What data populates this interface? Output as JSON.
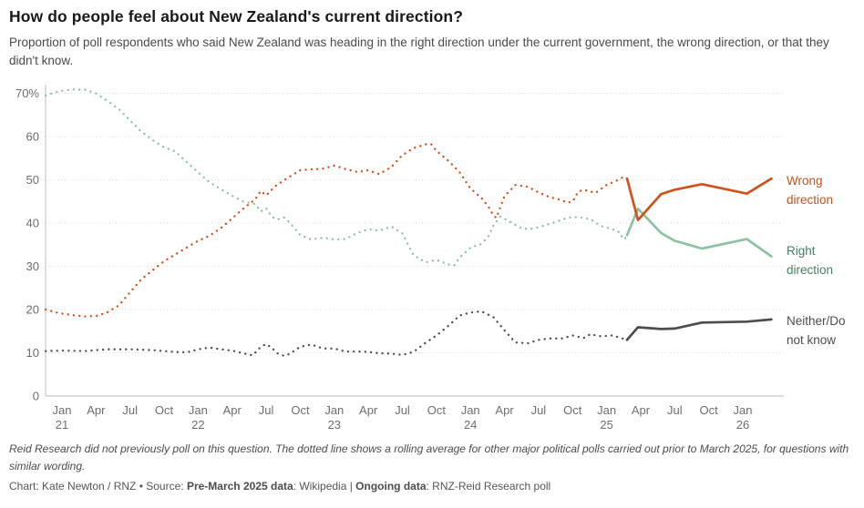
{
  "chart_data": {
    "type": "line",
    "title": "How do people feel about New Zealand's current direction?",
    "subtitle": "Proportion of poll respondents who said New Zealand was heading in the right direction under the current government, the wrong direction, or that they didn't know.",
    "y_axis": {
      "ticks": [
        {
          "v": 0,
          "label": "0"
        },
        {
          "v": 10,
          "label": "10"
        },
        {
          "v": 20,
          "label": "20"
        },
        {
          "v": 30,
          "label": "30"
        },
        {
          "v": 40,
          "label": "40"
        },
        {
          "v": 50,
          "label": "50"
        },
        {
          "v": 60,
          "label": "60"
        },
        {
          "v": 70,
          "label": "70%"
        }
      ],
      "range": [
        0,
        71
      ],
      "grid": true
    },
    "x_axis": {
      "range_years": [
        2020.88,
        2026.25
      ],
      "ticks": [
        {
          "t": 2021.0,
          "month": "Jan",
          "year": "21"
        },
        {
          "t": 2021.25,
          "month": "Apr"
        },
        {
          "t": 2021.5,
          "month": "Jul"
        },
        {
          "t": 2021.75,
          "month": "Oct"
        },
        {
          "t": 2022.0,
          "month": "Jan",
          "year": "22"
        },
        {
          "t": 2022.25,
          "month": "Apr"
        },
        {
          "t": 2022.5,
          "month": "Jul"
        },
        {
          "t": 2022.75,
          "month": "Oct"
        },
        {
          "t": 2023.0,
          "month": "Jan",
          "year": "23"
        },
        {
          "t": 2023.25,
          "month": "Apr"
        },
        {
          "t": 2023.5,
          "month": "Jul"
        },
        {
          "t": 2023.75,
          "month": "Oct"
        },
        {
          "t": 2024.0,
          "month": "Jan",
          "year": "24"
        },
        {
          "t": 2024.25,
          "month": "Apr"
        },
        {
          "t": 2024.5,
          "month": "Jul"
        },
        {
          "t": 2024.75,
          "month": "Oct"
        },
        {
          "t": 2025.0,
          "month": "Jan",
          "year": "25"
        },
        {
          "t": 2025.25,
          "month": "Apr"
        },
        {
          "t": 2025.5,
          "month": "Jul"
        },
        {
          "t": 2025.75,
          "month": "Oct"
        },
        {
          "t": 2026.0,
          "month": "Jan",
          "year": "26"
        }
      ]
    },
    "legend": [
      {
        "id": "wrong",
        "label": "Wrong direction",
        "color": "#c6511c"
      },
      {
        "id": "right",
        "label": "Right direction",
        "color": "#458063"
      },
      {
        "id": "neither",
        "label": "Neither/Do not know",
        "color": "#4d4d4d"
      }
    ],
    "series": [
      {
        "name": "Right direction — pre-March 2025 rolling average",
        "color": "#8cc3a3",
        "style": "dotted",
        "points": [
          [
            2020.88,
            69.5
          ],
          [
            2020.96,
            70.3
          ],
          [
            2021.0,
            70.6
          ],
          [
            2021.08,
            70.9
          ],
          [
            2021.17,
            70.8
          ],
          [
            2021.25,
            70.0
          ],
          [
            2021.33,
            68.3
          ],
          [
            2021.42,
            66.3
          ],
          [
            2021.5,
            63.7
          ],
          [
            2021.58,
            61.2
          ],
          [
            2021.67,
            59.1
          ],
          [
            2021.75,
            57.5
          ],
          [
            2021.83,
            56.6
          ],
          [
            2021.92,
            54.0
          ],
          [
            2022.0,
            51.7
          ],
          [
            2022.08,
            49.5
          ],
          [
            2022.17,
            47.8
          ],
          [
            2022.25,
            46.3
          ],
          [
            2022.33,
            45.0
          ],
          [
            2022.42,
            44.4
          ],
          [
            2022.46,
            42.7
          ],
          [
            2022.5,
            43.4
          ],
          [
            2022.54,
            41.5
          ],
          [
            2022.58,
            40.8
          ],
          [
            2022.63,
            41.3
          ],
          [
            2022.67,
            40.2
          ],
          [
            2022.75,
            37.2
          ],
          [
            2022.83,
            36.2
          ],
          [
            2022.92,
            36.6
          ],
          [
            2023.0,
            36.2
          ],
          [
            2023.08,
            36.3
          ],
          [
            2023.17,
            37.7
          ],
          [
            2023.25,
            38.6
          ],
          [
            2023.33,
            38.2
          ],
          [
            2023.42,
            39.2
          ],
          [
            2023.5,
            37.6
          ],
          [
            2023.58,
            32.6
          ],
          [
            2023.67,
            30.9
          ],
          [
            2023.75,
            31.5
          ],
          [
            2023.83,
            30.5
          ],
          [
            2023.88,
            30.2
          ],
          [
            2023.92,
            32.0
          ],
          [
            2024.0,
            34.3
          ],
          [
            2024.08,
            35.2
          ],
          [
            2024.13,
            36.8
          ],
          [
            2024.17,
            39.5
          ],
          [
            2024.22,
            41.5
          ],
          [
            2024.29,
            40.3
          ],
          [
            2024.38,
            38.7
          ],
          [
            2024.46,
            38.7
          ],
          [
            2024.54,
            39.4
          ],
          [
            2024.63,
            40.3
          ],
          [
            2024.71,
            41.2
          ],
          [
            2024.79,
            41.4
          ],
          [
            2024.88,
            40.9
          ],
          [
            2024.96,
            39.3
          ],
          [
            2025.04,
            38.6
          ],
          [
            2025.1,
            37.8
          ],
          [
            2025.12,
            36.3
          ],
          [
            2025.15,
            36.7
          ]
        ]
      },
      {
        "name": "Wrong direction — pre-March 2025 rolling average",
        "color": "#d2521c",
        "style": "dotted",
        "points": [
          [
            2020.88,
            20.0
          ],
          [
            2020.96,
            19.3
          ],
          [
            2021.0,
            19.1
          ],
          [
            2021.08,
            18.7
          ],
          [
            2021.17,
            18.4
          ],
          [
            2021.25,
            18.5
          ],
          [
            2021.33,
            19.3
          ],
          [
            2021.42,
            21.0
          ],
          [
            2021.5,
            24.0
          ],
          [
            2021.58,
            26.9
          ],
          [
            2021.67,
            29.2
          ],
          [
            2021.75,
            31.2
          ],
          [
            2021.83,
            32.7
          ],
          [
            2021.92,
            34.4
          ],
          [
            2022.0,
            35.9
          ],
          [
            2022.08,
            37.0
          ],
          [
            2022.17,
            38.9
          ],
          [
            2022.25,
            41.1
          ],
          [
            2022.33,
            43.3
          ],
          [
            2022.42,
            45.5
          ],
          [
            2022.46,
            47.4
          ],
          [
            2022.5,
            46.4
          ],
          [
            2022.54,
            47.7
          ],
          [
            2022.58,
            48.9
          ],
          [
            2022.67,
            50.7
          ],
          [
            2022.75,
            52.2
          ],
          [
            2022.83,
            52.4
          ],
          [
            2022.92,
            52.6
          ],
          [
            2023.0,
            53.3
          ],
          [
            2023.08,
            52.5
          ],
          [
            2023.17,
            51.8
          ],
          [
            2023.25,
            52.2
          ],
          [
            2023.33,
            51.3
          ],
          [
            2023.42,
            53.0
          ],
          [
            2023.5,
            55.7
          ],
          [
            2023.58,
            57.3
          ],
          [
            2023.67,
            58.2
          ],
          [
            2023.71,
            58.3
          ],
          [
            2023.75,
            56.7
          ],
          [
            2023.83,
            54.6
          ],
          [
            2023.92,
            51.8
          ],
          [
            2024.0,
            48.0
          ],
          [
            2024.08,
            45.8
          ],
          [
            2024.13,
            43.9
          ],
          [
            2024.17,
            41.7
          ],
          [
            2024.19,
            41.2
          ],
          [
            2024.25,
            46.2
          ],
          [
            2024.33,
            48.8
          ],
          [
            2024.42,
            48.4
          ],
          [
            2024.5,
            47.1
          ],
          [
            2024.58,
            46.0
          ],
          [
            2024.67,
            45.3
          ],
          [
            2024.71,
            44.7
          ],
          [
            2024.75,
            45.0
          ],
          [
            2024.79,
            47.2
          ],
          [
            2024.83,
            47.7
          ],
          [
            2024.92,
            47.0
          ],
          [
            2025.0,
            48.8
          ],
          [
            2025.08,
            49.9
          ],
          [
            2025.12,
            50.6
          ],
          [
            2025.15,
            50.3
          ]
        ]
      },
      {
        "name": "Neither/Do not know — pre-March 2025 rolling average",
        "color": "#4d4d4d",
        "style": "dotted",
        "points": [
          [
            2020.88,
            10.4
          ],
          [
            2021.0,
            10.5
          ],
          [
            2021.17,
            10.4
          ],
          [
            2021.33,
            10.8
          ],
          [
            2021.5,
            10.8
          ],
          [
            2021.67,
            10.6
          ],
          [
            2021.75,
            10.4
          ],
          [
            2021.83,
            10.2
          ],
          [
            2021.92,
            10.1
          ],
          [
            2022.0,
            10.8
          ],
          [
            2022.08,
            11.2
          ],
          [
            2022.17,
            10.8
          ],
          [
            2022.25,
            10.5
          ],
          [
            2022.33,
            9.9
          ],
          [
            2022.4,
            9.4
          ],
          [
            2022.46,
            11.4
          ],
          [
            2022.5,
            12.0
          ],
          [
            2022.54,
            11.2
          ],
          [
            2022.58,
            9.9
          ],
          [
            2022.63,
            9.3
          ],
          [
            2022.67,
            9.7
          ],
          [
            2022.75,
            11.4
          ],
          [
            2022.83,
            11.9
          ],
          [
            2022.92,
            11.0
          ],
          [
            2023.0,
            11.0
          ],
          [
            2023.08,
            10.3
          ],
          [
            2023.17,
            10.3
          ],
          [
            2023.25,
            10.2
          ],
          [
            2023.33,
            9.9
          ],
          [
            2023.42,
            9.8
          ],
          [
            2023.5,
            9.5
          ],
          [
            2023.58,
            10.2
          ],
          [
            2023.67,
            12.3
          ],
          [
            2023.75,
            14.0
          ],
          [
            2023.83,
            16.0
          ],
          [
            2023.92,
            18.6
          ],
          [
            2024.0,
            19.3
          ],
          [
            2024.08,
            19.6
          ],
          [
            2024.17,
            18.2
          ],
          [
            2024.25,
            15.2
          ],
          [
            2024.33,
            12.4
          ],
          [
            2024.42,
            12.2
          ],
          [
            2024.5,
            13.0
          ],
          [
            2024.58,
            13.3
          ],
          [
            2024.67,
            13.3
          ],
          [
            2024.75,
            14.0
          ],
          [
            2024.83,
            13.4
          ],
          [
            2024.88,
            14.3
          ],
          [
            2024.96,
            13.8
          ],
          [
            2025.04,
            14.0
          ],
          [
            2025.1,
            13.5
          ],
          [
            2025.15,
            13.0
          ]
        ]
      },
      {
        "name": "Right direction — RNZ-Reid Research poll",
        "color": "#8cc3a3",
        "style": "solid",
        "points": [
          [
            2025.15,
            37.2
          ],
          [
            2025.23,
            43.3
          ],
          [
            2025.4,
            37.7
          ],
          [
            2025.5,
            35.9
          ],
          [
            2025.7,
            34.1
          ],
          [
            2026.03,
            36.3
          ],
          [
            2026.21,
            32.3
          ]
        ]
      },
      {
        "name": "Wrong direction — RNZ-Reid Research poll",
        "color": "#d2521c",
        "style": "solid",
        "points": [
          [
            2025.15,
            50.3
          ],
          [
            2025.23,
            40.7
          ],
          [
            2025.4,
            46.7
          ],
          [
            2025.5,
            47.7
          ],
          [
            2025.7,
            49.0
          ],
          [
            2026.03,
            46.8
          ],
          [
            2026.21,
            50.3
          ]
        ]
      },
      {
        "name": "Neither/Do not know — RNZ-Reid Research poll",
        "color": "#4d4d4d",
        "style": "solid",
        "points": [
          [
            2025.15,
            13.0
          ],
          [
            2025.23,
            15.9
          ],
          [
            2025.4,
            15.5
          ],
          [
            2025.5,
            15.6
          ],
          [
            2025.7,
            17.0
          ],
          [
            2026.03,
            17.2
          ],
          [
            2026.21,
            17.7
          ]
        ]
      }
    ],
    "layout": {
      "x0": 68,
      "pxPerYear": 149.4,
      "yZero": 435,
      "pxPerUnit": 4.75,
      "plotLeft": 50,
      "plotRight": 860,
      "plotTop": 93,
      "gridColor": "#d9d9d9",
      "axisColor": "#c8c8c8",
      "tickLabelColor": "#6e6e6e",
      "dottedWidth": 2.3,
      "solidWidth": 2.7
    }
  },
  "footer": {
    "note": "Reid Research did not previously poll on this question. The dotted line shows a rolling average for other major political polls carried out prior to March 2025, for questions with similar wording.",
    "credit_prefix": "Chart: Kate Newton / RNZ • Source: ",
    "credit_bold1": "Pre-March 2025 data",
    "credit_mid1": ": Wikipedia | ",
    "credit_bold2": "Ongoing data",
    "credit_mid2": ": RNZ-Reid Research poll"
  }
}
